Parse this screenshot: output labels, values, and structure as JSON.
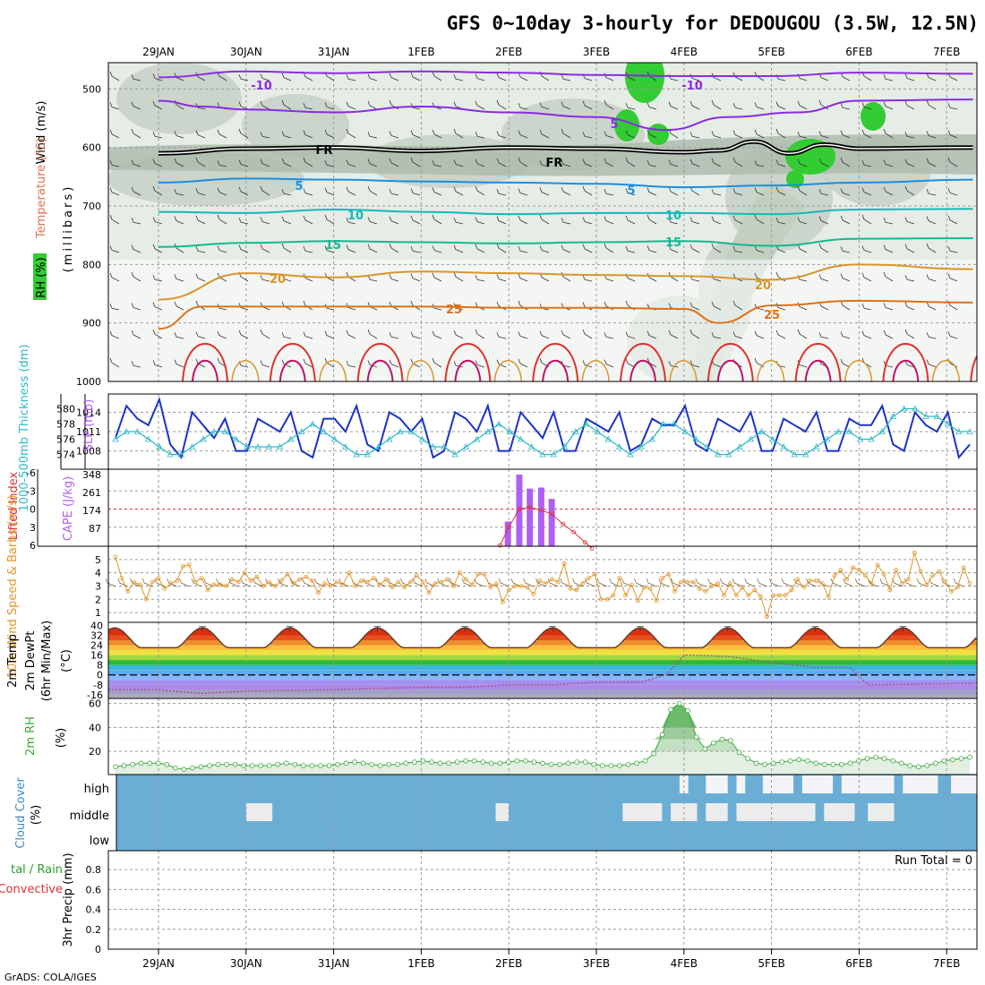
{
  "title": "GFS 0~10day 3-hourly for DEDOUGOU (3.5W, 12.5N)",
  "credit": "GrADS: COLA/IGES",
  "colors": {
    "grid": "#9a9a9a",
    "barb": "#333333",
    "rh_green": "#33cc33",
    "rh_gray": "#8fa88f",
    "freezing": "#000000",
    "iso_m10": "#8a2be2",
    "iso_m5": "#1e4fd8",
    "iso_5": "#1a8fe0",
    "iso_10": "#18b8b8",
    "iso_15": "#14b890",
    "iso_20": "#d8962a",
    "iso_25": "#e07018",
    "iso_30": "#e0302a",
    "iso_35": "#c0106a",
    "slp": "#1a32c8",
    "thickness": "#30b8c8",
    "cape": "#b060f0",
    "li": "#e03030",
    "wind10m": "#e0962a",
    "dewpt": "#a05080",
    "rh2m": "#3aa83a",
    "cloud": "#6aaed6",
    "cloud_clear": "#f4f4f8"
  },
  "chart_data": [
    {
      "id": "sounding",
      "type": "heatmap",
      "title": "GFS 0~10day 3-hourly for DEDOUGOU (3.5W, 12.5N)",
      "ylabel_parts": [
        "RH (%)",
        "Temperature (°C)",
        "Wind (m/s)"
      ],
      "ylabel_sub": "(millibars)",
      "yticks": [
        500,
        600,
        700,
        800,
        900,
        1000
      ],
      "ylim": [
        455,
        1000
      ],
      "x_top_labels": [
        "29JAN",
        "30JAN",
        "31JAN",
        "1FEB",
        "2FEB",
        "3FEB",
        "4FEB",
        "5FEB",
        "6FEB",
        "7FEB"
      ],
      "isotherms": [
        {
          "label": "-10",
          "color": "iso_m10",
          "day": [
            0,
            1,
            2,
            3,
            4,
            5,
            6,
            7,
            8,
            9.3
          ],
          "p": [
            480,
            470,
            473,
            470,
            472,
            476,
            478,
            478,
            472,
            474
          ]
        },
        {
          "label": "5",
          "color": "iso_m10",
          "day": [
            0,
            0.5,
            1,
            2,
            3,
            4,
            5,
            5.8,
            6.5,
            7.3,
            8,
            9.3
          ],
          "p": [
            520,
            530,
            535,
            540,
            530,
            540,
            548,
            570,
            548,
            540,
            520,
            518
          ]
        },
        {
          "label": "5",
          "color": "iso_5",
          "day": [
            0,
            1,
            2,
            3,
            4,
            5,
            6,
            7,
            8,
            9.3
          ],
          "p": [
            660,
            653,
            655,
            658,
            660,
            662,
            668,
            665,
            660,
            655
          ]
        },
        {
          "label": "10",
          "color": "iso_10",
          "day": [
            0,
            1,
            2,
            3,
            4,
            5,
            6,
            7,
            8,
            9.3
          ],
          "p": [
            710,
            712,
            706,
            710,
            714,
            712,
            712,
            714,
            706,
            705
          ]
        },
        {
          "label": "15",
          "color": "iso_15",
          "day": [
            0,
            1,
            2,
            3,
            4,
            5,
            6,
            7,
            8,
            9.3
          ],
          "p": [
            770,
            763,
            760,
            762,
            764,
            762,
            760,
            768,
            756,
            755
          ]
        },
        {
          "label": "20",
          "color": "iso_20",
          "day": [
            0,
            1,
            2,
            3,
            4,
            5,
            6,
            7,
            8,
            9.3
          ],
          "p": [
            860,
            815,
            822,
            812,
            815,
            818,
            820,
            826,
            800,
            808
          ]
        },
        {
          "label": "25",
          "color": "iso_25",
          "day": [
            0,
            0.5,
            1,
            2,
            3,
            4,
            5,
            6,
            6.4,
            7,
            8,
            9.3
          ],
          "p": [
            910,
            872,
            872,
            872,
            872,
            874,
            874,
            876,
            900,
            870,
            862,
            865
          ]
        }
      ],
      "freezing_level": {
        "label": "FR",
        "day": [
          0,
          1,
          2,
          3,
          4,
          5,
          6,
          6.4,
          6.8,
          7.2,
          7.6,
          8,
          9.3
        ],
        "p": [
          610,
          602,
          600,
          606,
          600,
          602,
          608,
          605,
          590,
          610,
          595,
          602,
          600
        ]
      },
      "contour_labels": [
        "-10",
        "-10",
        "5",
        "FR",
        "FR",
        "5",
        "5",
        "10",
        "10",
        "15",
        "15",
        "20",
        "20",
        "25",
        "25"
      ]
    },
    {
      "id": "slp_thickness",
      "type": "line",
      "ylabel_left": "1000-500mb Thickness (dm)",
      "ylabel_right": "SLP (mb)",
      "yticks_left": [
        574,
        576,
        578,
        580
      ],
      "yticks_right": [
        1008,
        1011,
        1014
      ],
      "series": [
        {
          "name": "SLP",
          "color": "slp",
          "values": [
            1010,
            1015,
            1013,
            1012,
            1016,
            1009,
            1007,
            1014,
            1012,
            1010,
            1013,
            1008,
            1008,
            1013,
            1012,
            1011,
            1014,
            1008,
            1007,
            1013,
            1013,
            1011,
            1015,
            1009,
            1008,
            1014,
            1013,
            1011,
            1013,
            1007,
            1008,
            1014,
            1013,
            1011,
            1015,
            1008,
            1008,
            1014,
            1012,
            1010,
            1014,
            1008,
            1008,
            1013,
            1012,
            1011,
            1014,
            1008,
            1009,
            1013,
            1012,
            1012,
            1015,
            1009,
            1008,
            1013,
            1012,
            1011,
            1014,
            1008,
            1008,
            1013,
            1012,
            1011,
            1014,
            1008,
            1008,
            1013,
            1012,
            1012,
            1015,
            1009,
            1008,
            1014,
            1012,
            1011,
            1014,
            1007,
            1009
          ]
        },
        {
          "name": "Thickness",
          "color": "thickness",
          "values": [
            576,
            577,
            577,
            576,
            575,
            574,
            574,
            575,
            576,
            577,
            577,
            576,
            575,
            575,
            575,
            575,
            576,
            577,
            578,
            577,
            576,
            575,
            574,
            574,
            575,
            576,
            577,
            577,
            576,
            575,
            575,
            574,
            575,
            576,
            577,
            578,
            577,
            576,
            575,
            574,
            574,
            575,
            577,
            578,
            577,
            576,
            575,
            574,
            575,
            576,
            578,
            578,
            577,
            576,
            575,
            574,
            574,
            575,
            576,
            577,
            576,
            575,
            574,
            574,
            575,
            576,
            577,
            577,
            576,
            576,
            577,
            579,
            580,
            580,
            579,
            579,
            578,
            577,
            577
          ]
        }
      ]
    },
    {
      "id": "cape_li",
      "type": "bar",
      "ylabel_left": "Lifted Index",
      "ylabel_right": "CAPE (J/kg)",
      "yticks_left": [
        -6,
        -3,
        0,
        3,
        6
      ],
      "yticks_right": [
        87,
        174,
        261,
        348
      ],
      "cape_bars": [
        {
          "day": 3.99,
          "value": 120
        },
        {
          "day": 4.12,
          "value": 348
        },
        {
          "day": 4.24,
          "value": 280
        },
        {
          "day": 4.37,
          "value": 285
        },
        {
          "day": 4.49,
          "value": 230
        }
      ],
      "lifted_index": {
        "day": [
          3.9,
          4.0,
          4.12,
          4.24,
          4.37,
          4.49,
          4.62,
          4.74,
          4.87,
          4.95
        ],
        "values": [
          6,
          3,
          0,
          -0.3,
          0.2,
          0.8,
          2.5,
          3.8,
          5.5,
          6.5
        ]
      }
    },
    {
      "id": "wind10m",
      "type": "line",
      "ylabel": "10m Wind Speed & Barbs (m/s)",
      "yticks": [
        1,
        2,
        3,
        4,
        5
      ],
      "ylim": [
        0.4,
        5.8
      ],
      "values": [
        5.2,
        3.6,
        2.6,
        3.3,
        3.1,
        2.0,
        3.3,
        3.6,
        2.8,
        3.2,
        3.4,
        4.5,
        4.6,
        3.3,
        3.6,
        2.7,
        3.1,
        3.1,
        3.0,
        3.5,
        3.3,
        4.0,
        3.4,
        3.7,
        3.0,
        3.3,
        3.0,
        3.4,
        3.9,
        3.2,
        3.5,
        3.7,
        3.4,
        2.5,
        3.2,
        3.0,
        3.3,
        3.1,
        4.0,
        3.0,
        3.4,
        3.3,
        3.6,
        3.1,
        3.5,
        2.9,
        3.3,
        2.9,
        3.3,
        3.8,
        3.3,
        2.5,
        3.2,
        3.3,
        3.5,
        3.0,
        4.0,
        3.5,
        3.1,
        3.9,
        3.9,
        2.9,
        3.2,
        1.8,
        2.7,
        3.0,
        3.0,
        2.9,
        2.4,
        3.4,
        3.2,
        3.5,
        3.3,
        4.7,
        2.8,
        2.7,
        3.2,
        3.6,
        3.9,
        2.0,
        2.0,
        2.3,
        3.6,
        2.3,
        3.1,
        1.9,
        2.9,
        2.8,
        1.9,
        3.6,
        3.9,
        2.6,
        3.3,
        3.3,
        3.3,
        2.8,
        2.6,
        3.0,
        3.2,
        2.3,
        3.2,
        2.3,
        2.9,
        2.3,
        2.7,
        2.2,
        0.7,
        2.3,
        2.3,
        2.3,
        2.7,
        3.5,
        2.9,
        3.4,
        3.4,
        3.2,
        2.2,
        3.8,
        4.2,
        3.5,
        4.4,
        4.2,
        3.8,
        3.2,
        4.6,
        3.9,
        2.7,
        4.2,
        3.2,
        3.5,
        5.5,
        4.1,
        3.1,
        3.8,
        4.1,
        3.3,
        2.6,
        2.9,
        4.4,
        3.2
      ]
    },
    {
      "id": "temp2m",
      "type": "area",
      "ylabel_parts": [
        "2m Temp",
        "2m DewPt",
        "(6hr Min/Max)",
        "(°C)"
      ],
      "yticks": [
        -16,
        -8,
        0,
        8,
        16,
        24,
        32,
        40
      ],
      "ylim": [
        -19,
        41
      ],
      "temp_days_max": [
        0.5,
        1.5,
        2.5,
        3.5,
        4.5,
        5.5,
        6.5,
        7.5,
        8.5,
        9.5
      ],
      "temp_max": 38,
      "temp_min": 22,
      "dewpt": {
        "day": [
          0,
          0.5,
          1,
          2,
          3,
          3.5,
          4,
          4.5,
          5,
          5.5,
          5.8,
          6.0,
          6.5,
          7.0,
          7.5,
          7.9,
          8.1,
          9.3
        ],
        "values": [
          -12,
          -15,
          -13,
          -12,
          -10,
          -10,
          -8,
          -8,
          -6,
          -6,
          0,
          16,
          15,
          10,
          6,
          6,
          -8,
          -7
        ]
      }
    },
    {
      "id": "rh2m",
      "type": "area",
      "ylabel": "2m RH",
      "yunit": "(%)",
      "yticks": [
        20,
        40,
        60
      ],
      "ylim": [
        2,
        62
      ],
      "values": [
        7,
        8,
        9,
        10,
        10,
        10,
        9,
        6,
        5,
        6,
        7,
        8,
        9,
        9,
        9,
        8,
        8,
        8,
        8,
        9,
        10,
        9,
        8,
        8,
        8,
        8,
        9,
        10,
        11,
        10,
        9,
        8,
        9,
        9,
        10,
        11,
        12,
        11,
        10,
        10,
        11,
        12,
        12,
        11,
        10,
        10,
        11,
        12,
        12,
        11,
        10,
        9,
        9,
        10,
        11,
        11,
        9,
        8,
        8,
        8,
        9,
        10,
        12,
        18,
        34,
        55,
        60,
        54,
        32,
        22,
        27,
        30,
        29,
        19,
        14,
        10,
        9,
        10,
        11,
        12,
        13,
        12,
        10,
        9,
        9,
        9,
        10,
        12,
        14,
        15,
        14,
        12,
        10,
        8,
        7,
        8,
        10,
        12,
        13,
        14,
        15
      ]
    },
    {
      "id": "cloud",
      "type": "heatmap",
      "ylabel": "Cloud Cover",
      "yunit": "(%)",
      "levels": [
        "high",
        "middle",
        "low"
      ],
      "clear_high_segments": [
        [
          5.95,
          6.05
        ],
        [
          6.25,
          6.5
        ],
        [
          6.6,
          6.7
        ],
        [
          6.9,
          7.25
        ],
        [
          7.35,
          7.7
        ],
        [
          7.8,
          8.4
        ],
        [
          8.5,
          8.9
        ],
        [
          9.05,
          9.35
        ]
      ],
      "clear_mid_segments": [
        [
          1.0,
          1.3
        ],
        [
          3.85,
          4.0
        ],
        [
          5.3,
          5.75
        ],
        [
          5.85,
          6.15
        ],
        [
          6.25,
          6.5
        ],
        [
          6.6,
          7.5
        ],
        [
          7.6,
          7.95
        ],
        [
          8.1,
          8.4
        ]
      ]
    },
    {
      "id": "precip",
      "type": "bar",
      "ylabel": "3hr Precip (mm)",
      "legend_total": "tal / Rain",
      "legend_conv": "Convective",
      "yticks": [
        0,
        0.2,
        0.4,
        0.6,
        0.8
      ],
      "ylim": [
        0,
        0.9
      ],
      "values": [],
      "run_total": "Run Total = 0"
    }
  ],
  "x_bottom_labels": [
    "29JAN",
    "30JAN",
    "31JAN",
    "1FEB",
    "2FEB",
    "3FEB",
    "4FEB",
    "5FEB",
    "6FEB",
    "7FEB"
  ]
}
